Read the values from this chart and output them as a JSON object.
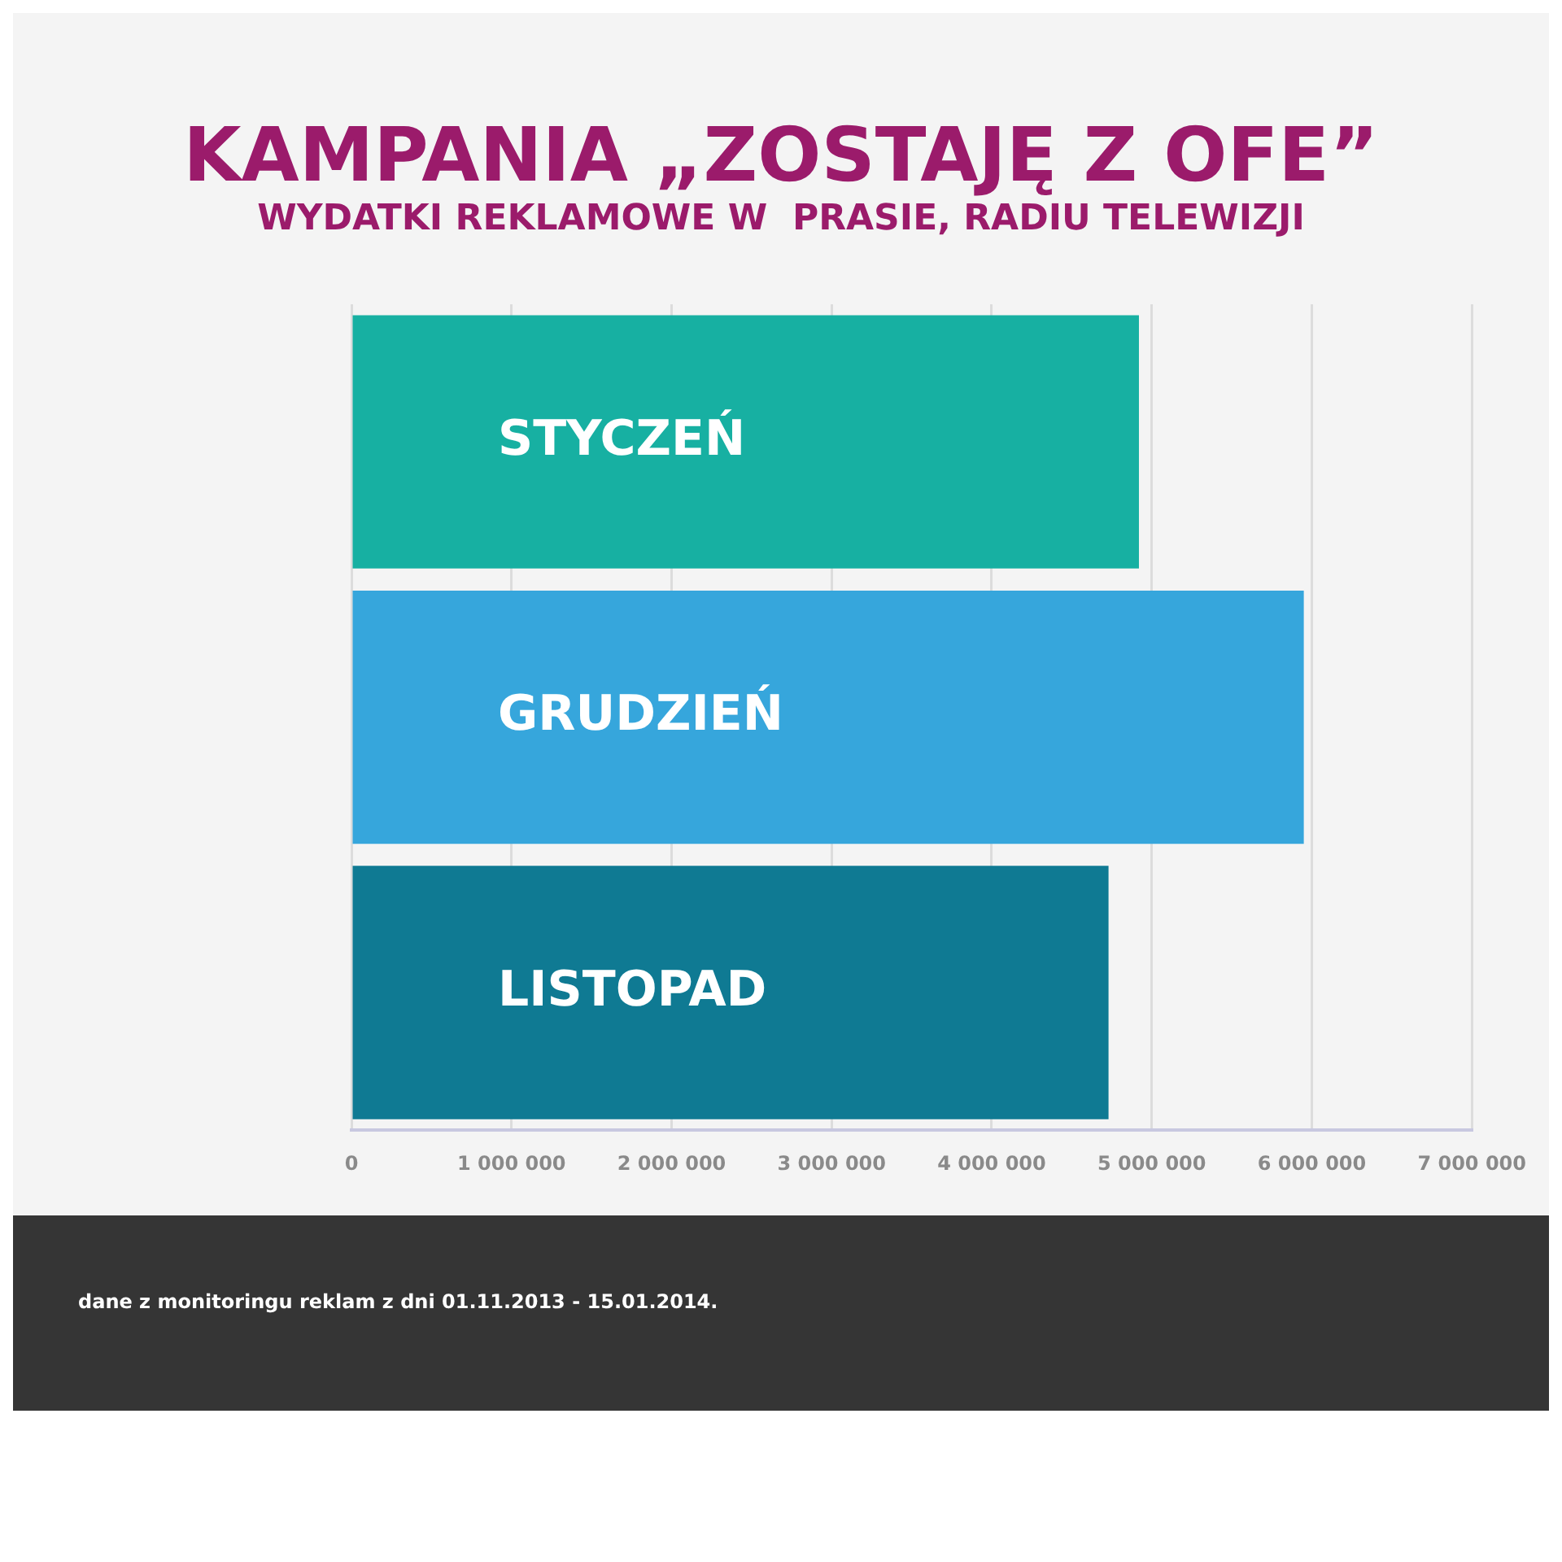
{
  "chart_data": {
    "type": "bar",
    "orientation": "horizontal",
    "title": "KAMPANIA „ZOSTAJĘ Z OFE”",
    "subtitle": "WYDATKI REKLAMOWE W  PRASIE, RADIU TELEWIZJI",
    "categories": [
      "STYCZEŃ",
      "GRUDZIEŃ",
      "LISTOPAD"
    ],
    "values": [
      4920000,
      5950000,
      4730000
    ],
    "colors": [
      "#17b0a2",
      "#36a6dc",
      "#0f7a93"
    ],
    "xlim": [
      0,
      7000000
    ],
    "xticks": [
      0,
      {
        "value": 1000000,
        "label": "1 000 000"
      },
      {
        "value": 2000000,
        "label": "2 000 000"
      },
      {
        "value": 3000000,
        "label": "3 000 000"
      },
      {
        "value": 4000000,
        "label": "4 000 000"
      },
      {
        "value": 5000000,
        "label": "5 000 000"
      },
      {
        "value": 6000000,
        "label": "6 000 000"
      },
      {
        "value": 7000000,
        "label": "7 000 000"
      }
    ],
    "grid": "x",
    "legend": false,
    "annotations": [
      "dane z monitoringu reklam z dni 01.11.2013 - 15.01.2014."
    ]
  }
}
